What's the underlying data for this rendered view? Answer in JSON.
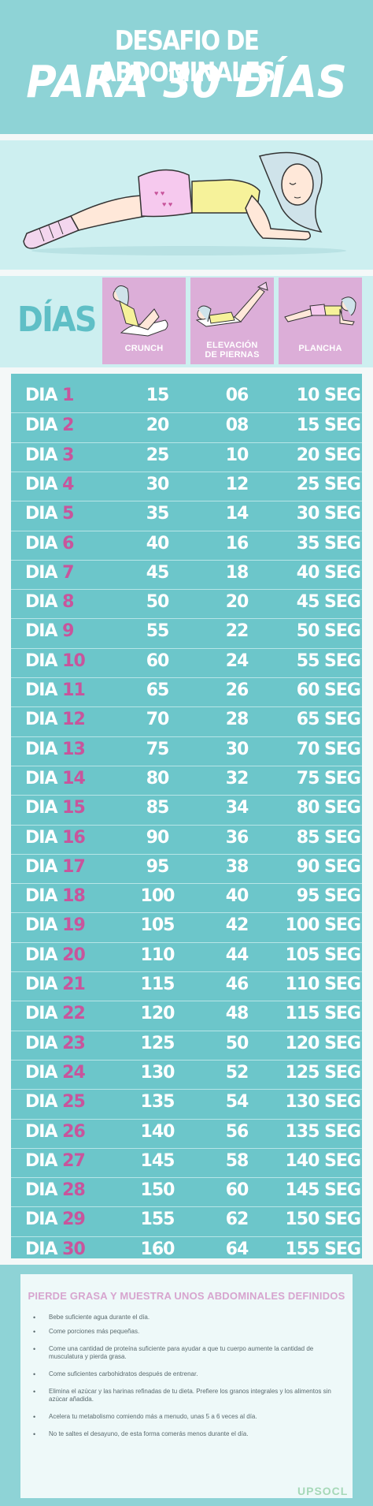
{
  "header": {
    "title_line1": "DESAFIO DE ABDOMINALES",
    "title_line2": "PARA 30 DÍAS"
  },
  "colors": {
    "teal_header": "#8ed3d6",
    "teal_table": "#6cc6ca",
    "pale_teal": "#cdeff0",
    "lilac": "#dcaed8",
    "day_number_pink": "#c8559c"
  },
  "columns": {
    "days_label": "DÍAS",
    "crunch_label": "CRUNCH",
    "legs_label_line1": "ELEVACIÓN",
    "legs_label_line2": "DE PIERNAS",
    "plank_label": "PLANCHA"
  },
  "rows": [
    {
      "prefix": "DIA",
      "day": "1",
      "crunch": "15",
      "legs": "06",
      "plank": "10 SEG"
    },
    {
      "prefix": "DIA",
      "day": "2",
      "crunch": "20",
      "legs": "08",
      "plank": "15 SEG"
    },
    {
      "prefix": "DIA",
      "day": "3",
      "crunch": "25",
      "legs": "10",
      "plank": "20 SEG"
    },
    {
      "prefix": "DIA",
      "day": "4",
      "crunch": "30",
      "legs": "12",
      "plank": "25 SEG"
    },
    {
      "prefix": "DIA",
      "day": "5",
      "crunch": "35",
      "legs": "14",
      "plank": "30 SEG"
    },
    {
      "prefix": "DIA",
      "day": "6",
      "crunch": "40",
      "legs": "16",
      "plank": "35 SEG"
    },
    {
      "prefix": "DIA",
      "day": "7",
      "crunch": "45",
      "legs": "18",
      "plank": "40 SEG"
    },
    {
      "prefix": "DIA",
      "day": "8",
      "crunch": "50",
      "legs": "20",
      "plank": "45 SEG"
    },
    {
      "prefix": "DIA",
      "day": "9",
      "crunch": "55",
      "legs": "22",
      "plank": "50 SEG"
    },
    {
      "prefix": "DIA",
      "day": "10",
      "crunch": "60",
      "legs": "24",
      "plank": "55 SEG"
    },
    {
      "prefix": "DIA",
      "day": "11",
      "crunch": "65",
      "legs": "26",
      "plank": "60 SEG"
    },
    {
      "prefix": "DIA",
      "day": "12",
      "crunch": "70",
      "legs": "28",
      "plank": "65 SEG"
    },
    {
      "prefix": "DIA",
      "day": "13",
      "crunch": "75",
      "legs": "30",
      "plank": "70 SEG"
    },
    {
      "prefix": "DIA",
      "day": "14",
      "crunch": "80",
      "legs": "32",
      "plank": "75 SEG"
    },
    {
      "prefix": "DIA",
      "day": "15",
      "crunch": "85",
      "legs": "34",
      "plank": "80 SEG"
    },
    {
      "prefix": "DIA",
      "day": "16",
      "crunch": "90",
      "legs": "36",
      "plank": "85 SEG"
    },
    {
      "prefix": "DIA",
      "day": "17",
      "crunch": "95",
      "legs": "38",
      "plank": "90 SEG"
    },
    {
      "prefix": "DIA",
      "day": "18",
      "crunch": "100",
      "legs": "40",
      "plank": "95 SEG"
    },
    {
      "prefix": "DIA",
      "day": "19",
      "crunch": "105",
      "legs": "42",
      "plank": "100 SEG"
    },
    {
      "prefix": "DIA",
      "day": "20",
      "crunch": "110",
      "legs": "44",
      "plank": "105 SEG"
    },
    {
      "prefix": "DIA",
      "day": "21",
      "crunch": "115",
      "legs": "46",
      "plank": "110 SEG"
    },
    {
      "prefix": "DIA",
      "day": "22",
      "crunch": "120",
      "legs": "48",
      "plank": "115 SEG"
    },
    {
      "prefix": "DIA",
      "day": "23",
      "crunch": "125",
      "legs": "50",
      "plank": "120 SEG"
    },
    {
      "prefix": "DIA",
      "day": "24",
      "crunch": "130",
      "legs": "52",
      "plank": "125 SEG"
    },
    {
      "prefix": "DIA",
      "day": "25",
      "crunch": "135",
      "legs": "54",
      "plank": "130 SEG"
    },
    {
      "prefix": "DIA",
      "day": "26",
      "crunch": "140",
      "legs": "56",
      "plank": "135 SEG"
    },
    {
      "prefix": "DIA",
      "day": "27",
      "crunch": "145",
      "legs": "58",
      "plank": "140 SEG"
    },
    {
      "prefix": "DIA",
      "day": "28",
      "crunch": "150",
      "legs": "60",
      "plank": "145 SEG"
    },
    {
      "prefix": "DIA",
      "day": "29",
      "crunch": "155",
      "legs": "62",
      "plank": "150 SEG"
    },
    {
      "prefix": "DIA",
      "day": "30",
      "crunch": "160",
      "legs": "64",
      "plank": "155 SEG"
    }
  ],
  "tips": {
    "title": "PIERDE GRASA Y MUESTRA UNOS ABDOMINALES DEFINIDOS",
    "items": [
      "Bebe suficiente agua durante el día.",
      "Come porciones más pequeñas.",
      "Come una cantidad de proteína suficiente para ayudar a que tu cuerpo aumente la cantidad de musculatura y pierda grasa.",
      "Come suficientes carbohidratos después de entrenar.",
      "Elimina el azúcar y las harinas refinadas de tu dieta. Prefiere los granos integrales y los alimentos sin azúcar añadida.",
      "Acelera tu metabolismo comiendo más a menudo, unas 5 a 6 veces al día.",
      "No te saltes el desayuno, de esta forma comerás menos durante el día."
    ],
    "bullet": "•"
  },
  "brand": {
    "logo_text": "UPSOCL"
  }
}
